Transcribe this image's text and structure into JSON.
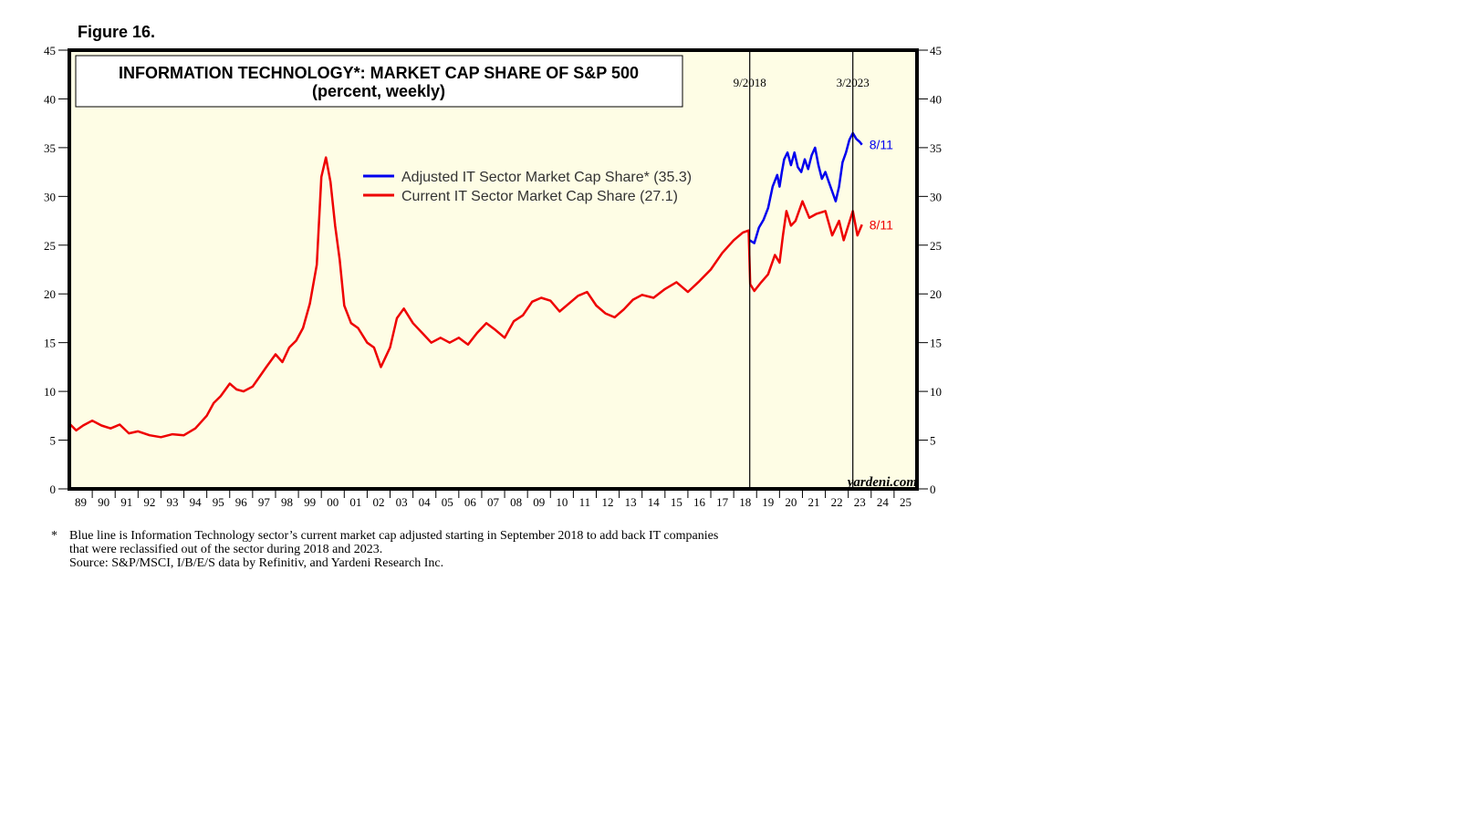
{
  "figure_label": "Figure 16.",
  "chart_data": {
    "type": "line",
    "title": "INFORMATION TECHNOLOGY*: MARKET CAP SHARE OF S&P 500",
    "subtitle": "(percent, weekly)",
    "xlabel": "",
    "ylabel": "",
    "ylim": [
      0,
      45
    ],
    "xlim": [
      1989,
      2026
    ],
    "y_ticks": [
      0,
      5,
      10,
      15,
      20,
      25,
      30,
      35,
      40,
      45
    ],
    "x_tick_labels": [
      "89",
      "90",
      "91",
      "92",
      "93",
      "94",
      "95",
      "96",
      "97",
      "98",
      "99",
      "00",
      "01",
      "02",
      "03",
      "04",
      "05",
      "06",
      "07",
      "08",
      "09",
      "10",
      "11",
      "12",
      "13",
      "14",
      "15",
      "16",
      "17",
      "18",
      "19",
      "20",
      "21",
      "22",
      "23",
      "24",
      "25"
    ],
    "vlines": [
      {
        "x": 2018.7,
        "label": "9/2018"
      },
      {
        "x": 2023.2,
        "label": "3/2023"
      }
    ],
    "legend_location": "upper-middle",
    "series": [
      {
        "name": "Adjusted IT Sector Market Cap Share* (35.3)",
        "color": "#0000ee",
        "end_label": "8/11",
        "x": [
          2018.7,
          2018.9,
          2019.1,
          2019.3,
          2019.5,
          2019.7,
          2019.9,
          2020.0,
          2020.1,
          2020.2,
          2020.35,
          2020.5,
          2020.65,
          2020.8,
          2020.95,
          2021.1,
          2021.25,
          2021.4,
          2021.55,
          2021.7,
          2021.85,
          2022.0,
          2022.15,
          2022.3,
          2022.45,
          2022.6,
          2022.75,
          2022.9,
          2023.05,
          2023.2,
          2023.35,
          2023.5,
          2023.6
        ],
        "y": [
          25.5,
          25.2,
          26.8,
          27.6,
          28.8,
          31.0,
          32.2,
          31.0,
          32.5,
          33.8,
          34.5,
          33.2,
          34.5,
          33.0,
          32.5,
          33.8,
          32.8,
          34.2,
          35.0,
          33.2,
          31.8,
          32.5,
          31.5,
          30.5,
          29.5,
          31.0,
          33.5,
          34.5,
          35.8,
          36.5,
          35.9,
          35.6,
          35.3
        ]
      },
      {
        "name": "Current IT Sector Market Cap Share (27.1)",
        "color": "#ee0000",
        "end_label": "8/11",
        "x": [
          1989.0,
          1989.3,
          1989.6,
          1990.0,
          1990.4,
          1990.8,
          1991.2,
          1991.6,
          1992.0,
          1992.5,
          1993.0,
          1993.5,
          1994.0,
          1994.5,
          1995.0,
          1995.3,
          1995.6,
          1996.0,
          1996.3,
          1996.6,
          1997.0,
          1997.3,
          1997.6,
          1998.0,
          1998.3,
          1998.6,
          1998.9,
          1999.2,
          1999.5,
          1999.8,
          2000.0,
          2000.2,
          2000.4,
          2000.6,
          2000.8,
          2001.0,
          2001.3,
          2001.6,
          2002.0,
          2002.3,
          2002.6,
          2002.8,
          2003.0,
          2003.3,
          2003.6,
          2004.0,
          2004.4,
          2004.8,
          2005.2,
          2005.6,
          2006.0,
          2006.4,
          2006.8,
          2007.2,
          2007.6,
          2008.0,
          2008.4,
          2008.8,
          2009.2,
          2009.6,
          2010.0,
          2010.4,
          2010.8,
          2011.2,
          2011.6,
          2012.0,
          2012.4,
          2012.8,
          2013.2,
          2013.6,
          2014.0,
          2014.5,
          2015.0,
          2015.5,
          2016.0,
          2016.5,
          2017.0,
          2017.5,
          2018.0,
          2018.4,
          2018.65,
          2018.72,
          2018.9,
          2019.2,
          2019.5,
          2019.8,
          2020.0,
          2020.15,
          2020.3,
          2020.5,
          2020.7,
          2021.0,
          2021.3,
          2021.6,
          2022.0,
          2022.3,
          2022.6,
          2022.8,
          2023.0,
          2023.2,
          2023.4,
          2023.6
        ],
        "y": [
          6.7,
          6.0,
          6.5,
          7.0,
          6.5,
          6.2,
          6.6,
          5.7,
          5.9,
          5.5,
          5.3,
          5.6,
          5.5,
          6.2,
          7.5,
          8.8,
          9.5,
          10.8,
          10.2,
          10.0,
          10.5,
          11.5,
          12.5,
          13.8,
          13.0,
          14.5,
          15.2,
          16.5,
          19.0,
          23.0,
          32.0,
          34.0,
          31.5,
          27.0,
          23.5,
          18.8,
          17.0,
          16.5,
          15.0,
          14.5,
          12.5,
          13.5,
          14.5,
          17.5,
          18.5,
          17.0,
          16.0,
          15.0,
          15.5,
          15.0,
          15.5,
          14.8,
          16.0,
          17.0,
          16.3,
          15.5,
          17.2,
          17.8,
          19.2,
          19.6,
          19.3,
          18.2,
          19.0,
          19.8,
          20.2,
          18.8,
          18.0,
          17.6,
          18.4,
          19.4,
          19.9,
          19.6,
          20.5,
          21.2,
          20.2,
          21.3,
          22.5,
          24.2,
          25.5,
          26.3,
          26.5,
          21.0,
          20.3,
          21.2,
          22.0,
          24.0,
          23.2,
          26.0,
          28.5,
          27.0,
          27.5,
          29.5,
          27.8,
          28.2,
          28.5,
          26.0,
          27.5,
          25.5,
          27.0,
          28.5,
          26.0,
          27.1
        ]
      }
    ]
  },
  "watermark": "yardeni.com",
  "footnote": {
    "star": "*",
    "lines": [
      "Blue line is Information Technology sector’s current market cap adjusted starting in September 2018 to add back IT companies",
      "that were reclassified out of the sector during 2018 and 2023.",
      "Source: S&P/MSCI, I/B/E/S data by Refinitiv, and Yardeni Research Inc."
    ]
  },
  "colors": {
    "plot_bg": "#fefde5",
    "frame": "#000000"
  }
}
